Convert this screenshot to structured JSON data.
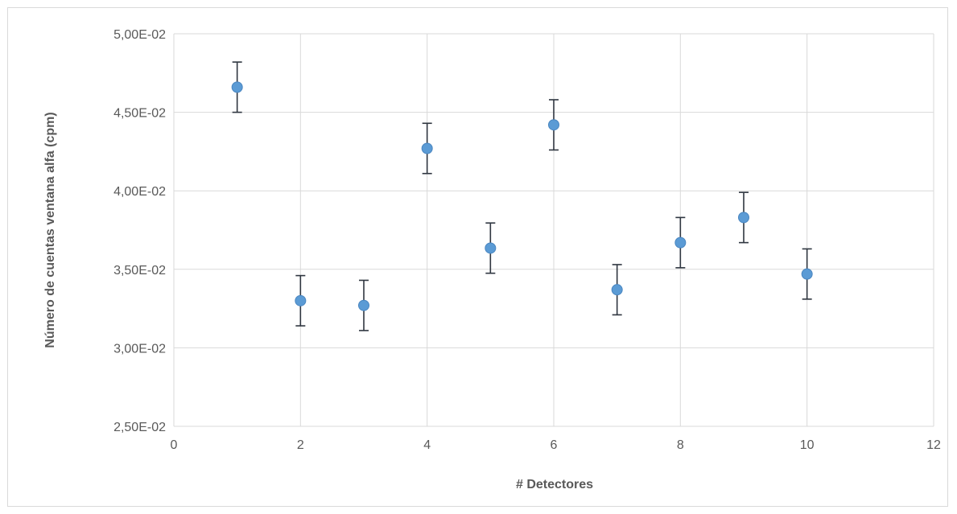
{
  "chart_data": {
    "type": "scatter",
    "title": "",
    "xlabel": "# Detectores",
    "ylabel": "Número de cuentas ventana alfa (cpm)",
    "xlim": [
      0,
      12
    ],
    "ylim": [
      0.025,
      0.05
    ],
    "x_ticks": [
      0,
      2,
      4,
      6,
      8,
      10,
      12
    ],
    "x_tick_labels": [
      "0",
      "2",
      "4",
      "6",
      "8",
      "10",
      "12"
    ],
    "y_ticks": [
      0.025,
      0.03,
      0.035,
      0.04,
      0.045,
      0.05
    ],
    "y_tick_labels": [
      "2,50E-02",
      "3,00E-02",
      "3,50E-02",
      "4,00E-02",
      "4,50E-02",
      "5,00E-02"
    ],
    "grid": true,
    "legend": "none",
    "marker_color": "#5b9bd5",
    "error_bar_color": "#2f3640",
    "series": [
      {
        "x": [
          1,
          2,
          3,
          4,
          5,
          6,
          7,
          8,
          9,
          10
        ],
        "y": [
          0.0466,
          0.033,
          0.0327,
          0.0427,
          0.03635,
          0.0442,
          0.0337,
          0.0367,
          0.0383,
          0.0347
        ],
        "y_error": [
          0.0016,
          0.0016,
          0.0016,
          0.0016,
          0.0016,
          0.0016,
          0.0016,
          0.0016,
          0.0016,
          0.0016
        ]
      }
    ]
  }
}
